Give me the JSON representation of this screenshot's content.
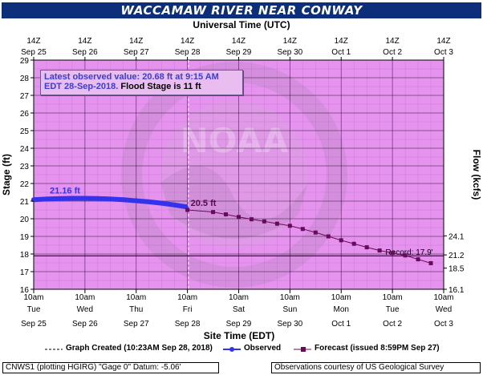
{
  "title": "WACCAMAW RIVER NEAR CONWAY",
  "top_axis_title": "Universal Time (UTC)",
  "top_ticks": [
    {
      "line1": "14Z",
      "line2": "Sep 25"
    },
    {
      "line1": "14Z",
      "line2": "Sep 26"
    },
    {
      "line1": "14Z",
      "line2": "Sep 27"
    },
    {
      "line1": "14Z",
      "line2": "Sep 28"
    },
    {
      "line1": "14Z",
      "line2": "Sep 29"
    },
    {
      "line1": "14Z",
      "line2": "Sep 30"
    },
    {
      "line1": "14Z",
      "line2": "Oct 1"
    },
    {
      "line1": "14Z",
      "line2": "Oct 2"
    },
    {
      "line1": "14Z",
      "line2": "Oct 3"
    }
  ],
  "info_box": {
    "line1": "Latest observed value: 20.68 ft at 9:15 AM",
    "line2_blue": "EDT 28-Sep-2018.",
    "line2_dark": "Flood Stage is 11 ft"
  },
  "legend": {
    "graph_created": "Graph Created (10:23AM Sep 28, 2018)",
    "observed": "Observed",
    "forecast": "Forecast (issued 8:59PM Sep 27)"
  },
  "footer_left": "CNWS1 (plotting HGIRG) \"Gage 0\" Datum: -5.06'",
  "footer_right": "Observations courtesy of US Geological Survey",
  "watermark": "NOAA",
  "colors": {
    "plot_bg": "#e693ef",
    "observed": "#3333ee",
    "forecast": "#6a0a5a",
    "record": "#000000"
  },
  "chart_data": {
    "type": "line",
    "xlabel": "Site Time (EDT)",
    "ylabel": "Stage (ft)",
    "y2label": "Flow (kcfs)",
    "ylim": [
      16,
      29
    ],
    "yticks": [
      16,
      17,
      18,
      19,
      20,
      21,
      22,
      23,
      24,
      25,
      26,
      27,
      28,
      29
    ],
    "y2ticks": [
      {
        "stage": 16,
        "label": "16.1"
      },
      {
        "stage": 17.2,
        "label": "18.5"
      },
      {
        "stage": 17.95,
        "label": "21.2"
      },
      {
        "stage": 19.03,
        "label": "24.1"
      }
    ],
    "x_ticks": [
      {
        "l1": "10am",
        "l2": "Tue",
        "l3": "Sep 25"
      },
      {
        "l1": "10am",
        "l2": "Wed",
        "l3": "Sep 26"
      },
      {
        "l1": "10am",
        "l2": "Thu",
        "l3": "Sep 27"
      },
      {
        "l1": "10am",
        "l2": "Fri",
        "l3": "Sep 28"
      },
      {
        "l1": "10am",
        "l2": "Sat",
        "l3": "Sep 29"
      },
      {
        "l1": "10am",
        "l2": "Sun",
        "l3": "Sep 30"
      },
      {
        "l1": "10am",
        "l2": "Mon",
        "l3": "Oct 1"
      },
      {
        "l1": "10am",
        "l2": "Tue",
        "l3": "Oct 2"
      },
      {
        "l1": "10am",
        "l2": "Wed",
        "l3": "Oct 3"
      }
    ],
    "xlim_days": [
      0,
      8
    ],
    "graph_created_day": 3.02,
    "record": {
      "value": 17.9,
      "label": "Record: 17.9'"
    },
    "series": [
      {
        "name": "Observed",
        "peak_label": "21.16 ft",
        "points": [
          [
            0,
            21.08
          ],
          [
            0.25,
            21.12
          ],
          [
            0.5,
            21.14
          ],
          [
            0.75,
            21.16
          ],
          [
            1.0,
            21.16
          ],
          [
            1.25,
            21.15
          ],
          [
            1.5,
            21.12
          ],
          [
            1.75,
            21.08
          ],
          [
            2.0,
            21.02
          ],
          [
            2.25,
            20.96
          ],
          [
            2.5,
            20.88
          ],
          [
            2.75,
            20.78
          ],
          [
            2.97,
            20.68
          ]
        ]
      },
      {
        "name": "Forecast",
        "start_label": "20.5 ft",
        "points": [
          [
            3.0,
            20.5
          ],
          [
            3.5,
            20.38
          ],
          [
            3.75,
            20.25
          ],
          [
            4.0,
            20.1
          ],
          [
            4.25,
            19.97
          ],
          [
            4.5,
            19.85
          ],
          [
            4.75,
            19.72
          ],
          [
            5.0,
            19.6
          ],
          [
            5.25,
            19.42
          ],
          [
            5.5,
            19.22
          ],
          [
            5.75,
            19.0
          ],
          [
            6.0,
            18.78
          ],
          [
            6.25,
            18.58
          ],
          [
            6.5,
            18.38
          ],
          [
            6.75,
            18.2
          ],
          [
            7.0,
            18.06
          ],
          [
            7.25,
            17.92
          ],
          [
            7.5,
            17.7
          ],
          [
            7.75,
            17.48
          ]
        ]
      }
    ]
  }
}
